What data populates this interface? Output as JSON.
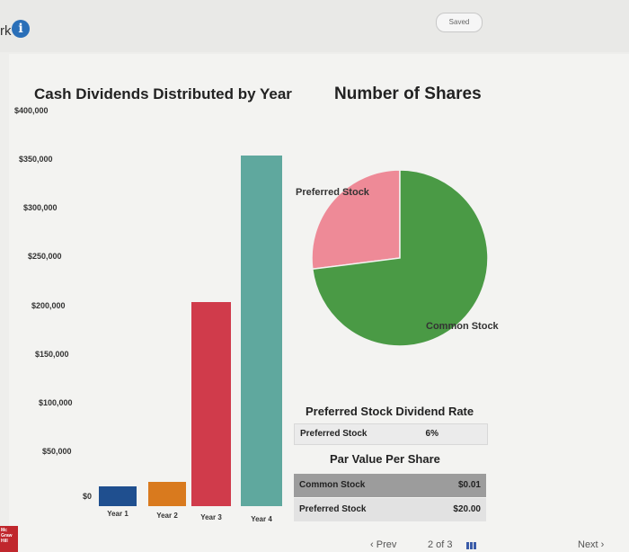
{
  "header": {
    "left_fragment": "rk",
    "saved_label": "Saved"
  },
  "chart_data": {
    "type": "bar",
    "title": "Cash Dividends Distributed by Year",
    "categories": [
      "Year 1",
      "Year 2",
      "Year 3",
      "Year 4"
    ],
    "values": [
      20000,
      25000,
      210000,
      360000
    ],
    "colors": [
      "#1f4f8f",
      "#d97a1e",
      "#d03b4b",
      "#5fa89e"
    ],
    "ylim": [
      0,
      400000
    ],
    "yticks": [
      "$0",
      "$50,000",
      "$100,000",
      "$150,000",
      "$200,000",
      "$250,000",
      "$300,000",
      "$350,000",
      "$400,000"
    ],
    "xlabel": "",
    "ylabel": "",
    "grid": false
  },
  "pie_chart": {
    "type": "pie",
    "title": "Number of Shares",
    "slices": [
      {
        "name": "Preferred Stock",
        "value": 27,
        "color": "#ee8a97"
      },
      {
        "name": "Common Stock",
        "value": 73,
        "color": "#4a9a45"
      }
    ]
  },
  "dividend_rate": {
    "title": "Preferred Stock Dividend Rate",
    "label": "Preferred Stock",
    "value": "6%"
  },
  "par_value": {
    "title": "Par Value Per Share",
    "rows": [
      {
        "label": "Common Stock",
        "value": "$0.01"
      },
      {
        "label": "Preferred Stock",
        "value": "$20.00"
      }
    ]
  },
  "footer": {
    "logo_text": "Mc Graw Hill",
    "prev_label": "Prev",
    "page_indicator": "2 of 3",
    "next_label": "Next"
  }
}
